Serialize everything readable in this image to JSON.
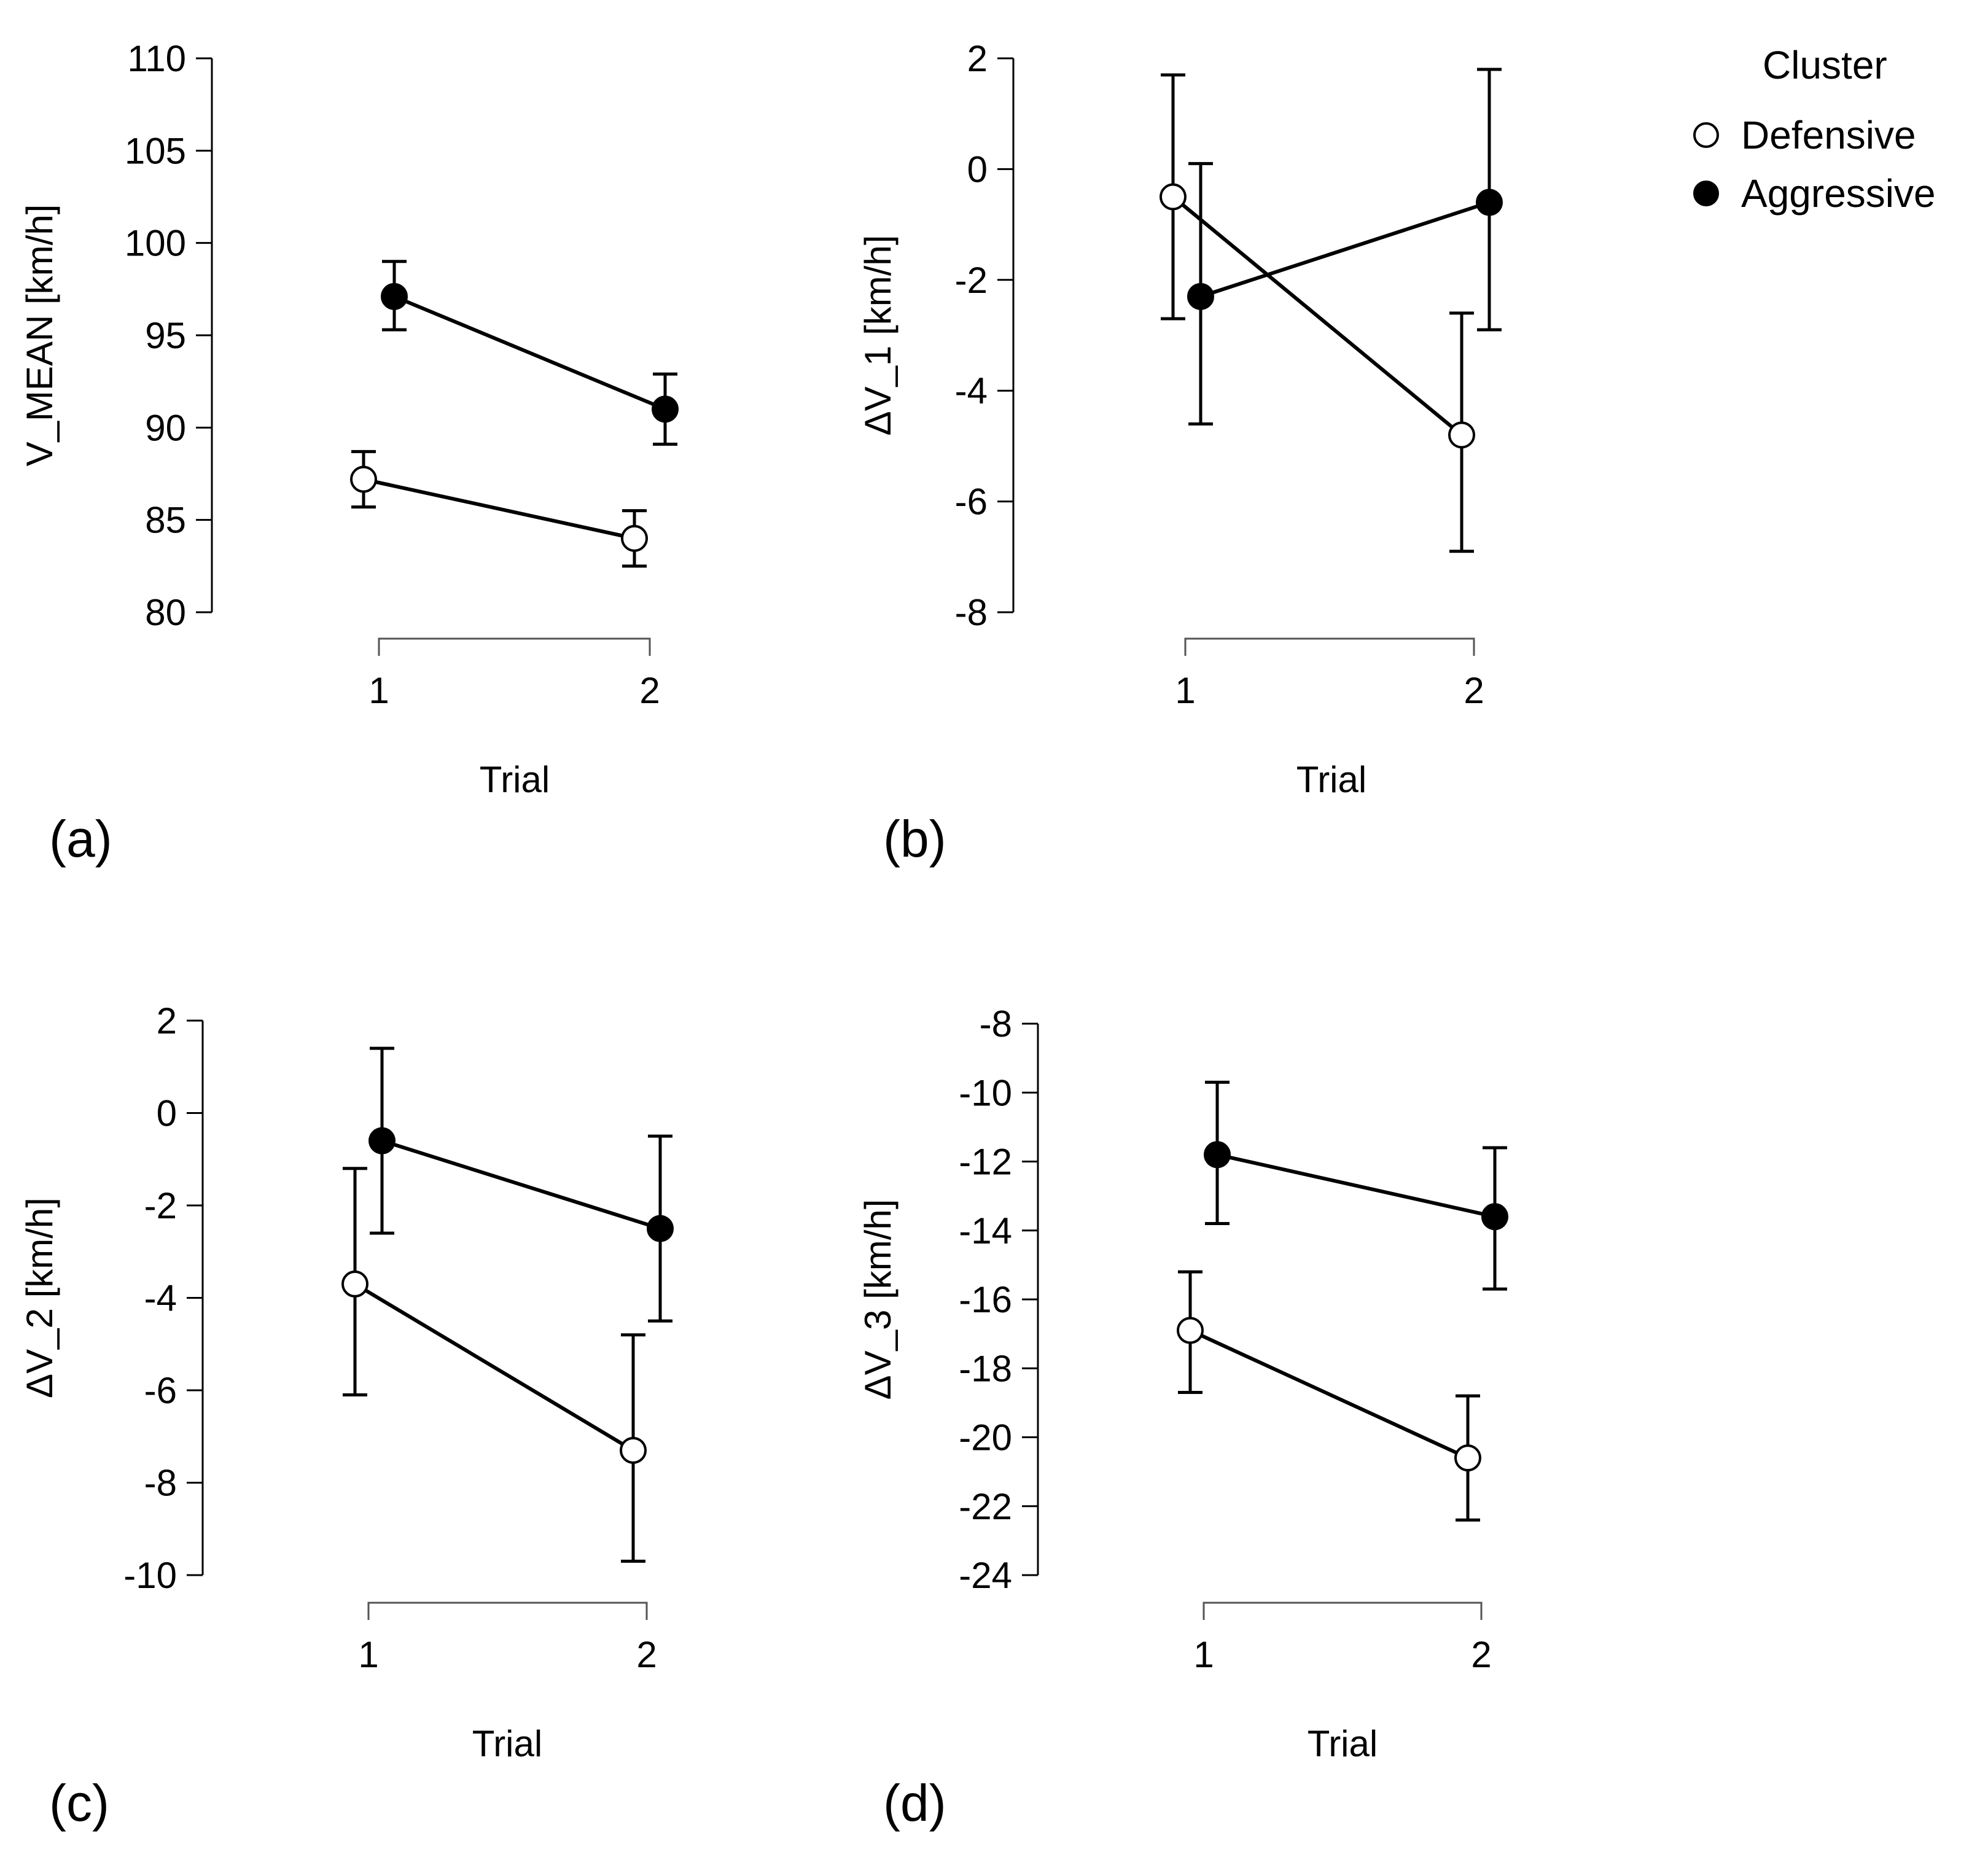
{
  "legend": {
    "title": "Cluster",
    "items": [
      {
        "label": "Defensive",
        "fill": "#ffffff"
      },
      {
        "label": "Aggressive",
        "fill": "#000000"
      }
    ]
  },
  "chart_data": [
    {
      "type": "line",
      "panel": "(a)",
      "ylabel": "V_MEAN [km/h]",
      "xlabel": "Trial",
      "x": [
        1,
        2
      ],
      "ylim": [
        80,
        110
      ],
      "yticks": [
        80,
        85,
        90,
        95,
        100,
        105,
        110
      ],
      "series": [
        {
          "name": "Defensive",
          "values": [
            87.2,
            84.0
          ],
          "err_low": [
            85.7,
            82.5
          ],
          "err_high": [
            88.7,
            85.5
          ]
        },
        {
          "name": "Aggressive",
          "values": [
            97.1,
            91.0
          ],
          "err_low": [
            95.3,
            89.1
          ],
          "err_high": [
            99.0,
            92.9
          ]
        }
      ]
    },
    {
      "type": "line",
      "panel": "(b)",
      "ylabel": "ΔV_1 [km/h]",
      "xlabel": "Trial",
      "x": [
        1,
        2
      ],
      "ylim": [
        -8,
        2
      ],
      "yticks": [
        -8,
        -6,
        -4,
        -2,
        0,
        2
      ],
      "series": [
        {
          "name": "Defensive",
          "values": [
            -0.5,
            -4.8
          ],
          "err_low": [
            -2.7,
            -6.9
          ],
          "err_high": [
            1.7,
            -2.6
          ]
        },
        {
          "name": "Aggressive",
          "values": [
            -2.3,
            -0.6
          ],
          "err_low": [
            -4.6,
            -2.9
          ],
          "err_high": [
            0.1,
            1.8
          ]
        }
      ]
    },
    {
      "type": "line",
      "panel": "(c)",
      "ylabel": "ΔV_2 [km/h]",
      "xlabel": "Trial",
      "x": [
        1,
        2
      ],
      "ylim": [
        -10,
        2
      ],
      "yticks": [
        -10,
        -8,
        -6,
        -4,
        -2,
        0,
        2
      ],
      "series": [
        {
          "name": "Defensive",
          "values": [
            -3.7,
            -7.3
          ],
          "err_low": [
            -6.1,
            -9.7
          ],
          "err_high": [
            -1.2,
            -4.8
          ]
        },
        {
          "name": "Aggressive",
          "values": [
            -0.6,
            -2.5
          ],
          "err_low": [
            -2.6,
            -4.5
          ],
          "err_high": [
            1.4,
            -0.5
          ]
        }
      ]
    },
    {
      "type": "line",
      "panel": "(d)",
      "ylabel": "ΔV_3 [km/h]",
      "xlabel": "Trial",
      "x": [
        1,
        2
      ],
      "ylim": [
        -24,
        -8
      ],
      "yticks": [
        -24,
        -22,
        -20,
        -18,
        -16,
        -14,
        -12,
        -10,
        -8
      ],
      "series": [
        {
          "name": "Defensive",
          "values": [
            -16.9,
            -20.6
          ],
          "err_low": [
            -18.7,
            -22.4
          ],
          "err_high": [
            -15.2,
            -18.8
          ]
        },
        {
          "name": "Aggressive",
          "values": [
            -11.8,
            -13.6
          ],
          "err_low": [
            -13.8,
            -15.7
          ],
          "err_high": [
            -9.7,
            -11.6
          ]
        }
      ]
    }
  ]
}
